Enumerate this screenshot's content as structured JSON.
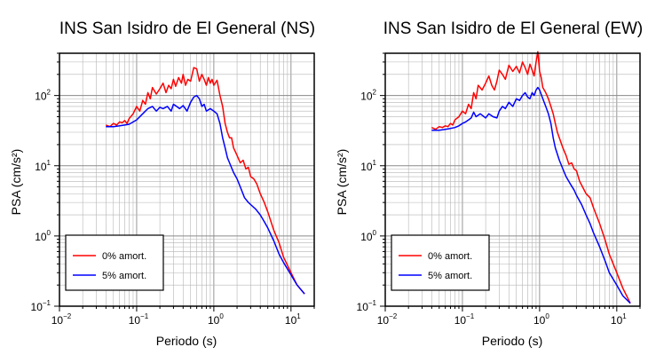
{
  "chart_data": [
    {
      "type": "line",
      "title": "INS San Isidro de El General (NS)",
      "xlabel": "Periodo (s)",
      "ylabel": "PSA (cm/s²)",
      "xscale": "log",
      "yscale": "log",
      "xlim": [
        0.01,
        20
      ],
      "ylim": [
        0.1,
        400
      ],
      "grid": true,
      "legend_position": "bottom-left",
      "x_ticks": [
        {
          "value": 0.01,
          "label": "10",
          "exp": "−2"
        },
        {
          "value": 0.1,
          "label": "10",
          "exp": "−1"
        },
        {
          "value": 1,
          "label": "10",
          "exp": "0"
        },
        {
          "value": 10,
          "label": "10",
          "exp": "1"
        }
      ],
      "y_ticks": [
        {
          "value": 0.1,
          "label": "10",
          "exp": "−1"
        },
        {
          "value": 1,
          "label": "10",
          "exp": "0"
        },
        {
          "value": 10,
          "label": "10",
          "exp": "1"
        },
        {
          "value": 100,
          "label": "10",
          "exp": "2"
        }
      ],
      "series": [
        {
          "name": "0% amort.",
          "color": "#ff0000",
          "x": [
            0.04,
            0.045,
            0.05,
            0.055,
            0.06,
            0.065,
            0.07,
            0.075,
            0.08,
            0.09,
            0.1,
            0.11,
            0.12,
            0.13,
            0.14,
            0.15,
            0.16,
            0.18,
            0.2,
            0.22,
            0.24,
            0.26,
            0.28,
            0.3,
            0.32,
            0.35,
            0.38,
            0.4,
            0.43,
            0.46,
            0.5,
            0.55,
            0.6,
            0.65,
            0.7,
            0.75,
            0.8,
            0.85,
            0.9,
            0.95,
            1.0,
            1.1,
            1.2,
            1.3,
            1.4,
            1.5,
            1.6,
            1.7,
            1.8,
            2.0,
            2.2,
            2.4,
            2.6,
            2.8,
            3.0,
            3.3,
            3.6,
            4.0,
            4.5,
            5.0,
            6.0,
            7.0,
            8.0,
            10.0,
            12.0,
            15.0
          ],
          "y": [
            38,
            36,
            40,
            38,
            42,
            41,
            44,
            40,
            47,
            55,
            70,
            60,
            85,
            75,
            110,
            90,
            130,
            105,
            125,
            150,
            110,
            140,
            125,
            170,
            135,
            180,
            150,
            200,
            140,
            170,
            160,
            250,
            240,
            160,
            200,
            170,
            140,
            180,
            150,
            170,
            140,
            165,
            100,
            70,
            40,
            30,
            25,
            25,
            18,
            14,
            11,
            12,
            9,
            9.5,
            7,
            6.5,
            5.5,
            4,
            3,
            2.2,
            1.2,
            0.8,
            0.5,
            0.3,
            0.2,
            0.15
          ]
        },
        {
          "name": "5% amort.",
          "color": "#0000ff",
          "x": [
            0.04,
            0.05,
            0.06,
            0.07,
            0.08,
            0.09,
            0.1,
            0.12,
            0.14,
            0.16,
            0.18,
            0.2,
            0.22,
            0.25,
            0.28,
            0.3,
            0.33,
            0.36,
            0.4,
            0.45,
            0.5,
            0.55,
            0.6,
            0.65,
            0.7,
            0.75,
            0.8,
            0.9,
            1.0,
            1.1,
            1.2,
            1.3,
            1.4,
            1.5,
            1.6,
            1.8,
            2.0,
            2.2,
            2.5,
            2.8,
            3.0,
            3.5,
            4.0,
            4.5,
            5.0,
            6.0,
            7.0,
            8.0,
            10.0,
            12.0,
            15.0
          ],
          "y": [
            36,
            36,
            37,
            38,
            39,
            42,
            45,
            55,
            65,
            70,
            60,
            68,
            65,
            70,
            60,
            75,
            70,
            65,
            72,
            60,
            80,
            95,
            100,
            90,
            70,
            75,
            60,
            65,
            60,
            55,
            40,
            25,
            18,
            13,
            11,
            8,
            6.5,
            5,
            3.5,
            3,
            2.8,
            2.4,
            2.0,
            1.6,
            1.3,
            0.85,
            0.55,
            0.42,
            0.28,
            0.2,
            0.15
          ]
        }
      ]
    },
    {
      "type": "line",
      "title": "INS San Isidro de El General (EW)",
      "xlabel": "Periodo (s)",
      "ylabel": "PSA (cm/s²)",
      "xscale": "log",
      "yscale": "log",
      "xlim": [
        0.01,
        20
      ],
      "ylim": [
        0.1,
        400
      ],
      "grid": true,
      "legend_position": "bottom-left",
      "x_ticks": [
        {
          "value": 0.01,
          "label": "10",
          "exp": "−2"
        },
        {
          "value": 0.1,
          "label": "10",
          "exp": "−1"
        },
        {
          "value": 1,
          "label": "10",
          "exp": "0"
        },
        {
          "value": 10,
          "label": "10",
          "exp": "1"
        }
      ],
      "y_ticks": [
        {
          "value": 0.1,
          "label": "10",
          "exp": "−1"
        },
        {
          "value": 1,
          "label": "10",
          "exp": "0"
        },
        {
          "value": 10,
          "label": "10",
          "exp": "1"
        },
        {
          "value": 100,
          "label": "10",
          "exp": "2"
        }
      ],
      "series": [
        {
          "name": "0% amort.",
          "color": "#ff0000",
          "x": [
            0.04,
            0.045,
            0.05,
            0.055,
            0.06,
            0.065,
            0.07,
            0.075,
            0.08,
            0.09,
            0.1,
            0.11,
            0.12,
            0.13,
            0.14,
            0.15,
            0.16,
            0.18,
            0.2,
            0.22,
            0.24,
            0.26,
            0.28,
            0.3,
            0.33,
            0.36,
            0.4,
            0.45,
            0.5,
            0.55,
            0.6,
            0.65,
            0.7,
            0.75,
            0.8,
            0.85,
            0.9,
            0.95,
            1.0,
            1.05,
            1.1,
            1.2,
            1.3,
            1.4,
            1.5,
            1.6,
            1.7,
            1.8,
            2.0,
            2.2,
            2.4,
            2.6,
            2.8,
            3.0,
            3.3,
            3.6,
            4.0,
            4.5,
            5.0,
            6.0,
            7.0,
            8.0,
            10.0,
            12.0,
            15.0
          ],
          "y": [
            35,
            33,
            36,
            35,
            37,
            36,
            40,
            38,
            45,
            50,
            60,
            55,
            75,
            65,
            110,
            90,
            140,
            120,
            150,
            190,
            140,
            120,
            160,
            230,
            200,
            170,
            270,
            220,
            260,
            210,
            300,
            250,
            200,
            280,
            230,
            190,
            300,
            420,
            220,
            180,
            130,
            110,
            90,
            70,
            55,
            40,
            30,
            25,
            18,
            14,
            10.5,
            11,
            9,
            8.5,
            6,
            5,
            4,
            3.5,
            2.5,
            1.5,
            0.9,
            0.55,
            0.3,
            0.18,
            0.11
          ]
        },
        {
          "name": "5% amort.",
          "color": "#0000ff",
          "x": [
            0.04,
            0.05,
            0.06,
            0.07,
            0.08,
            0.09,
            0.1,
            0.11,
            0.12,
            0.13,
            0.14,
            0.15,
            0.17,
            0.2,
            0.22,
            0.25,
            0.28,
            0.3,
            0.33,
            0.36,
            0.4,
            0.45,
            0.5,
            0.55,
            0.6,
            0.65,
            0.7,
            0.75,
            0.8,
            0.85,
            0.9,
            0.95,
            1.0,
            1.1,
            1.2,
            1.3,
            1.4,
            1.5,
            1.6,
            1.8,
            2.0,
            2.2,
            2.5,
            2.8,
            3.0,
            3.5,
            4.0,
            4.5,
            5.0,
            6.0,
            7.0,
            8.0,
            10.0,
            12.0,
            15.0
          ],
          "y": [
            32,
            32,
            33,
            34,
            35,
            37,
            40,
            42,
            45,
            48,
            58,
            50,
            55,
            48,
            55,
            50,
            48,
            60,
            70,
            65,
            80,
            70,
            90,
            85,
            100,
            110,
            95,
            90,
            110,
            100,
            120,
            130,
            120,
            90,
            70,
            55,
            40,
            25,
            18,
            12,
            9,
            7,
            5.5,
            4.5,
            3.8,
            2.8,
            2.0,
            1.5,
            1.1,
            0.7,
            0.45,
            0.3,
            0.2,
            0.14,
            0.11
          ]
        }
      ]
    }
  ]
}
